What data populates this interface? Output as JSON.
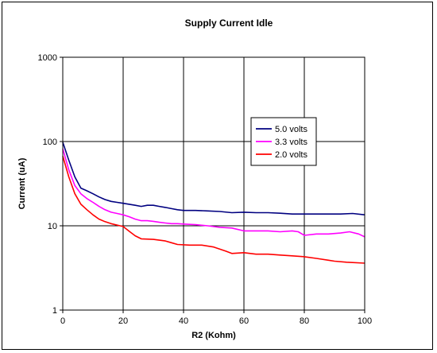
{
  "chart_data": {
    "type": "line",
    "title": "Supply Current Idle",
    "xlabel": "R2 (Kohm)",
    "ylabel": "Current (uA)",
    "xlim": [
      0,
      100
    ],
    "ylim": [
      1,
      1000
    ],
    "yscale": "log",
    "grid": true,
    "legend": "right",
    "x_ticks": [
      "0",
      "20",
      "40",
      "60",
      "80",
      "100"
    ],
    "y_ticks": [
      "1",
      "10",
      "100",
      "1000"
    ],
    "series": [
      {
        "name": "5.0 volts",
        "color": "#000080",
        "points": [
          [
            0,
            98
          ],
          [
            2,
            60
          ],
          [
            4,
            38
          ],
          [
            6,
            28
          ],
          [
            8,
            26
          ],
          [
            10,
            24
          ],
          [
            12,
            22
          ],
          [
            14,
            20.5
          ],
          [
            16,
            19.5
          ],
          [
            18,
            19
          ],
          [
            20,
            18.5
          ],
          [
            22,
            18
          ],
          [
            24,
            17.5
          ],
          [
            26,
            17
          ],
          [
            28,
            17.5
          ],
          [
            30,
            17.5
          ],
          [
            32,
            17
          ],
          [
            34,
            16.5
          ],
          [
            36,
            16
          ],
          [
            38,
            15.5
          ],
          [
            40,
            15.2
          ],
          [
            44,
            15.2
          ],
          [
            48,
            15
          ],
          [
            52,
            14.8
          ],
          [
            56,
            14.3
          ],
          [
            60,
            14.5
          ],
          [
            64,
            14.3
          ],
          [
            68,
            14.3
          ],
          [
            72,
            14.1
          ],
          [
            76,
            13.8
          ],
          [
            80,
            13.8
          ],
          [
            84,
            13.8
          ],
          [
            88,
            13.8
          ],
          [
            92,
            13.8
          ],
          [
            96,
            14
          ],
          [
            100,
            13.5
          ]
        ]
      },
      {
        "name": "3.3 volts",
        "color": "#ff00ff",
        "points": [
          [
            0,
            82
          ],
          [
            2,
            46
          ],
          [
            4,
            30
          ],
          [
            6,
            24
          ],
          [
            8,
            21
          ],
          [
            10,
            19
          ],
          [
            12,
            17
          ],
          [
            14,
            15.5
          ],
          [
            16,
            14.5
          ],
          [
            18,
            14
          ],
          [
            20,
            13.5
          ],
          [
            22,
            12.8
          ],
          [
            24,
            12
          ],
          [
            26,
            11.5
          ],
          [
            28,
            11.5
          ],
          [
            30,
            11.3
          ],
          [
            32,
            11
          ],
          [
            34,
            10.8
          ],
          [
            36,
            10.6
          ],
          [
            38,
            10.6
          ],
          [
            40,
            10.5
          ],
          [
            44,
            10.3
          ],
          [
            48,
            10
          ],
          [
            52,
            9.6
          ],
          [
            56,
            9.4
          ],
          [
            60,
            8.7
          ],
          [
            64,
            8.7
          ],
          [
            68,
            8.7
          ],
          [
            72,
            8.5
          ],
          [
            76,
            8.7
          ],
          [
            78,
            8.5
          ],
          [
            80,
            7.7
          ],
          [
            84,
            8
          ],
          [
            88,
            8
          ],
          [
            92,
            8.2
          ],
          [
            95,
            8.5
          ],
          [
            98,
            8
          ],
          [
            100,
            7.4
          ]
        ]
      },
      {
        "name": "2.0 volts",
        "color": "#ff0000",
        "points": [
          [
            0,
            67
          ],
          [
            2,
            38
          ],
          [
            4,
            24
          ],
          [
            6,
            18
          ],
          [
            8,
            15.5
          ],
          [
            10,
            13.5
          ],
          [
            12,
            12
          ],
          [
            14,
            11.2
          ],
          [
            16,
            10.6
          ],
          [
            18,
            10.2
          ],
          [
            20,
            9.8
          ],
          [
            22,
            8.6
          ],
          [
            24,
            7.6
          ],
          [
            26,
            7
          ],
          [
            30,
            6.9
          ],
          [
            34,
            6.6
          ],
          [
            36,
            6.3
          ],
          [
            38,
            6
          ],
          [
            42,
            5.9
          ],
          [
            46,
            5.9
          ],
          [
            50,
            5.6
          ],
          [
            54,
            5
          ],
          [
            56,
            4.7
          ],
          [
            60,
            4.8
          ],
          [
            64,
            4.6
          ],
          [
            68,
            4.6
          ],
          [
            72,
            4.5
          ],
          [
            76,
            4.4
          ],
          [
            80,
            4.3
          ],
          [
            84,
            4.1
          ],
          [
            88,
            3.9
          ],
          [
            90,
            3.8
          ],
          [
            94,
            3.7
          ],
          [
            100,
            3.6
          ]
        ]
      }
    ]
  }
}
